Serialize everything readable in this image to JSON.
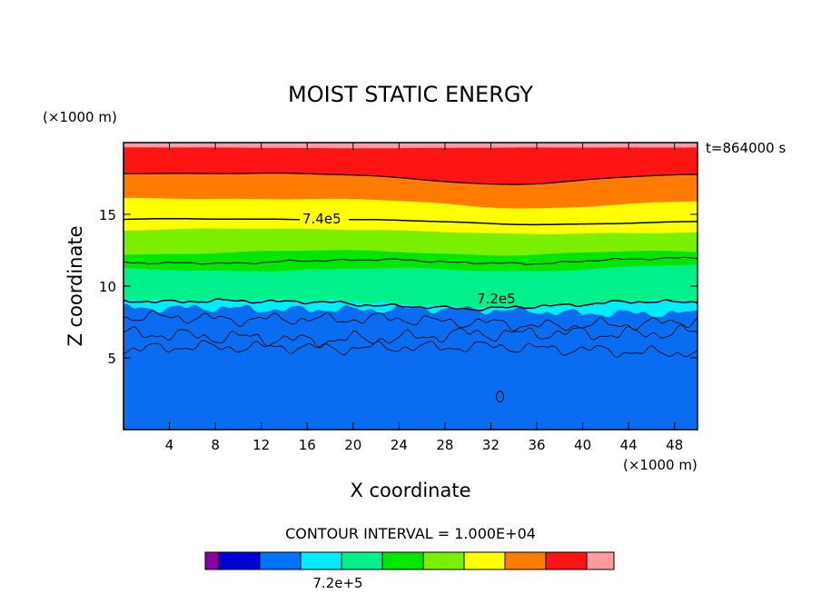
{
  "chart_data": {
    "type": "heatmap",
    "title": "MOIST STATIC ENERGY",
    "xlabel": "X coordinate",
    "ylabel": "Z coordinate",
    "x_unit": "(×1000 m)",
    "y_unit": "(×1000 m)",
    "time_label": "t=864000 s",
    "xlim": [
      0,
      50
    ],
    "ylim": [
      0,
      20
    ],
    "x_ticks": [
      "4",
      "8",
      "12",
      "16",
      "20",
      "24",
      "28",
      "32",
      "36",
      "40",
      "44",
      "48"
    ],
    "y_ticks": [
      "5",
      "10",
      "15"
    ],
    "contour_interval_text": "CONTOUR INTERVAL = 1.000E+04",
    "contour_labels": [
      "7.4e5",
      "7.2e5"
    ],
    "colorbar_label": "7.2e+5",
    "colorbar_colors": [
      "#8b00a5",
      "#0000d6",
      "#0073ff",
      "#00ecff",
      "#00f08c",
      "#00e600",
      "#7aef00",
      "#ffff00",
      "#ff7c00",
      "#ff1414",
      "#ff9ca0"
    ],
    "band_colors": {
      "blue": "#0a6cf0",
      "cyan": "#00ecff",
      "teal": "#00f08c",
      "green": "#00e600",
      "lime": "#7aef00",
      "yellow": "#ffff00",
      "orange": "#ff7c00",
      "red": "#ff1414",
      "pink": "#ff9ca0"
    }
  }
}
